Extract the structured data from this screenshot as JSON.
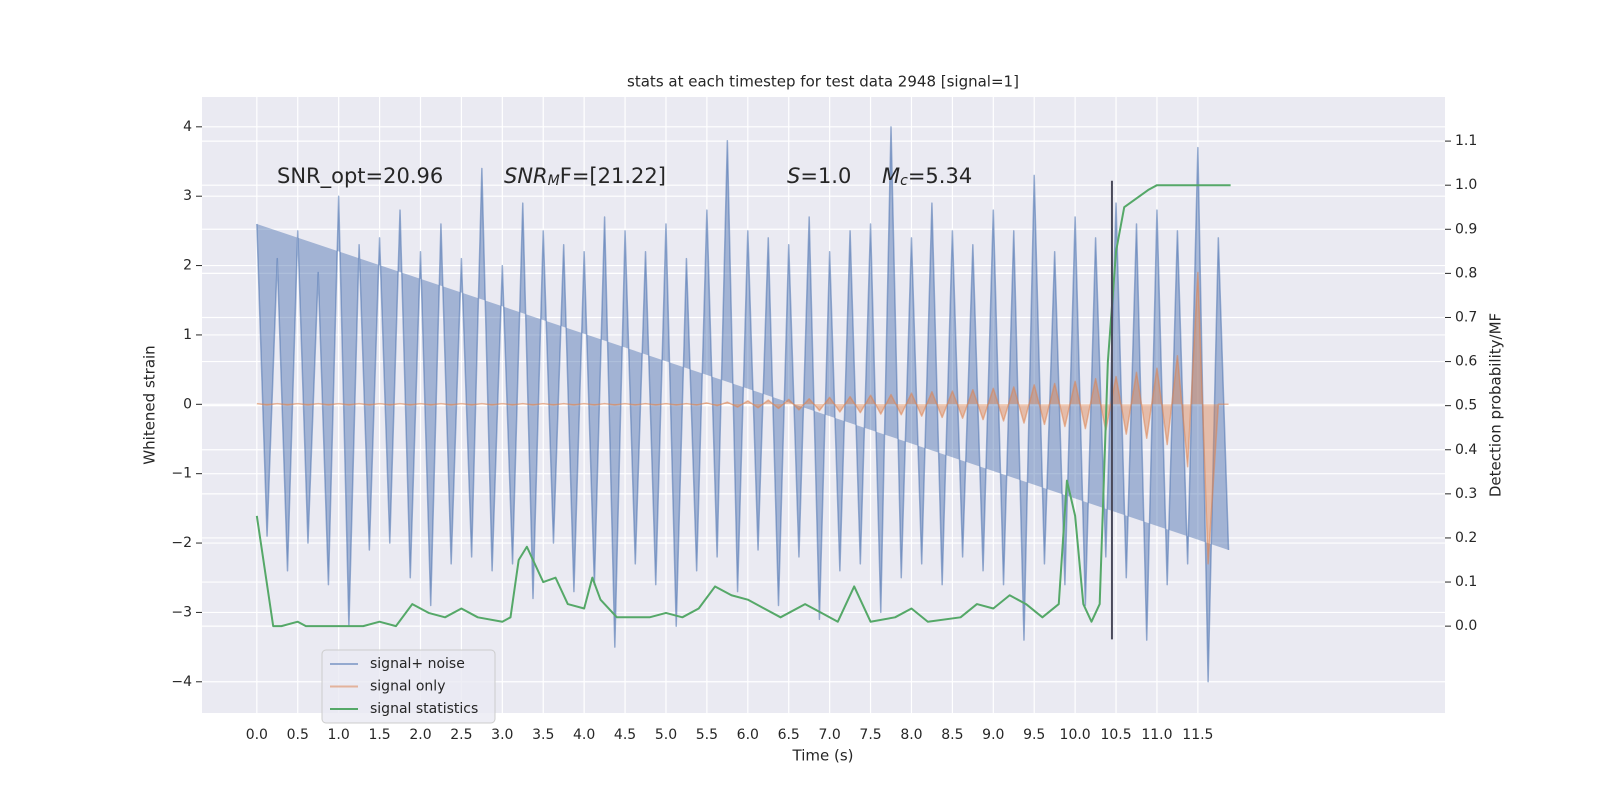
{
  "chart_data": {
    "type": "line",
    "title": "stats at each timestep for test data 2948 [signal=1]",
    "xlabel": "Time (s)",
    "ylabel": "Whitened strain",
    "y2label": "Detection probability/MF",
    "xlim": [
      -0.67,
      14.52
    ],
    "ylim": [
      -4.45,
      4.43
    ],
    "y2lim": [
      -0.197,
      1.2
    ],
    "xticks": [
      {
        "value": 0,
        "label": "0.0"
      },
      0.5,
      {
        "value": 1,
        "label": "1.0"
      },
      1.5,
      {
        "value": 2,
        "label": "2.0"
      },
      2.5,
      {
        "value": 3,
        "label": "3.0"
      },
      3.5,
      {
        "value": 4,
        "label": "4.0"
      },
      4.5,
      {
        "value": 5,
        "label": "5.0"
      },
      5.5,
      {
        "value": 6,
        "label": "6.0"
      },
      6.5,
      {
        "value": 7,
        "label": "7.0"
      },
      7.5,
      {
        "value": 8,
        "label": "8.0"
      },
      8.5,
      {
        "value": 9,
        "label": "9.0"
      },
      9.5,
      {
        "value": 10,
        "label": "10.0"
      },
      10.5,
      {
        "value": 11,
        "label": "11.0"
      },
      11.5
    ],
    "yticks": [
      {
        "value": -4,
        "label": "−4"
      },
      {
        "value": -3,
        "label": "−3"
      },
      {
        "value": -2,
        "label": "−2"
      },
      {
        "value": -1,
        "label": "−1"
      },
      0,
      1,
      2,
      3,
      4
    ],
    "y2ticks": [
      {
        "value": 0,
        "label": "0.0"
      },
      0.1,
      0.2,
      0.3,
      0.4,
      0.5,
      0.6,
      0.7,
      0.8,
      0.9,
      {
        "value": 1,
        "label": "1.0"
      },
      1.1
    ],
    "grid": true,
    "legend": "lower left",
    "x": [
      0,
      0.125,
      0.25,
      0.375,
      0.5,
      0.625,
      0.75,
      0.875,
      1,
      1.125,
      1.25,
      1.375,
      1.5,
      1.625,
      1.75,
      1.875,
      2,
      2.125,
      2.25,
      2.375,
      2.5,
      2.625,
      2.75,
      2.875,
      3,
      3.125,
      3.25,
      3.375,
      3.5,
      3.625,
      3.75,
      3.875,
      4,
      4.125,
      4.25,
      4.375,
      4.5,
      4.625,
      4.75,
      4.875,
      5,
      5.125,
      5.25,
      5.375,
      5.5,
      5.625,
      5.75,
      5.875,
      6,
      6.125,
      6.25,
      6.375,
      6.5,
      6.625,
      6.75,
      6.875,
      7,
      7.125,
      7.25,
      7.375,
      7.5,
      7.625,
      7.75,
      7.875,
      8,
      8.125,
      8.25,
      8.375,
      8.5,
      8.625,
      8.75,
      8.875,
      9,
      9.125,
      9.25,
      9.375,
      9.5,
      9.625,
      9.75,
      9.875,
      10,
      10.125,
      10.25,
      10.375,
      10.5,
      10.625,
      10.75,
      10.875,
      11,
      11.125,
      11.25,
      11.375,
      11.5,
      11.625,
      11.75,
      11.875
    ],
    "series": [
      {
        "name": "signal+ noise",
        "color": "#4c72b0",
        "values": [
          2.6,
          -1.9,
          2.1,
          -2.4,
          2.5,
          -2.0,
          1.9,
          -2.6,
          3.0,
          -3.2,
          2.3,
          -2.1,
          2.4,
          -2.0,
          2.8,
          -2.5,
          2.2,
          -2.9,
          2.6,
          -2.3,
          2.1,
          -2.2,
          3.4,
          -2.4,
          2.0,
          -2.3,
          2.9,
          -2.8,
          2.5,
          -2.0,
          2.3,
          -2.7,
          2.2,
          -2.6,
          2.7,
          -3.5,
          2.5,
          -2.3,
          2.2,
          -2.6,
          2.6,
          -3.2,
          2.1,
          -2.4,
          2.8,
          -2.2,
          3.8,
          -2.7,
          2.5,
          -2.1,
          2.4,
          -2.9,
          2.3,
          -2.2,
          2.7,
          -3.1,
          2.2,
          -2.4,
          2.5,
          -2.3,
          2.6,
          -3.0,
          4.0,
          -2.5,
          2.4,
          -2.3,
          2.9,
          -2.6,
          2.5,
          -2.2,
          2.3,
          -2.4,
          2.8,
          -2.6,
          2.5,
          -3.4,
          3.3,
          -2.3,
          2.2,
          -2.6,
          2.7,
          -2.9,
          2.4,
          -2.2,
          2.9,
          -2.5,
          2.6,
          -3.4,
          2.8,
          -2.6,
          2.5,
          -2.3,
          3.7,
          -4.0,
          2.4,
          -2.1
        ]
      },
      {
        "name": "signal only",
        "color": "#dd8452",
        "values": [
          0.01,
          -0.01,
          0.01,
          -0.01,
          0.01,
          -0.01,
          0.01,
          -0.01,
          0.01,
          -0.01,
          0.01,
          -0.01,
          0.01,
          -0.01,
          0.01,
          -0.01,
          0.01,
          -0.01,
          0.01,
          -0.01,
          0.01,
          -0.01,
          0.01,
          -0.01,
          0.01,
          -0.01,
          0.01,
          -0.01,
          0.01,
          -0.01,
          0.01,
          -0.01,
          0.01,
          -0.01,
          0.01,
          -0.01,
          0.01,
          -0.01,
          0.01,
          -0.01,
          0.01,
          -0.01,
          0.01,
          -0.01,
          0.02,
          -0.02,
          0.03,
          -0.04,
          0.05,
          -0.05,
          0.06,
          -0.06,
          0.07,
          -0.08,
          0.08,
          -0.09,
          0.1,
          -0.11,
          0.11,
          -0.12,
          0.13,
          -0.14,
          0.14,
          -0.15,
          0.16,
          -0.17,
          0.18,
          -0.19,
          0.19,
          -0.2,
          0.21,
          -0.22,
          0.23,
          -0.24,
          0.25,
          -0.27,
          0.28,
          -0.29,
          0.3,
          -0.32,
          0.33,
          -0.35,
          0.37,
          -0.38,
          0.4,
          -0.43,
          0.46,
          -0.49,
          0.52,
          -0.58,
          0.7,
          -0.9,
          1.9,
          -2.3,
          0,
          0
        ]
      },
      {
        "name": "signal statistics",
        "color": "#55a868",
        "axis": "y2",
        "x": [
          0,
          0.12,
          0.2,
          0.3,
          0.5,
          0.6,
          0.8,
          1.0,
          1.3,
          1.5,
          1.7,
          1.9,
          2.1,
          2.3,
          2.5,
          2.7,
          3.0,
          3.1,
          3.2,
          3.3,
          3.5,
          3.65,
          3.8,
          4.0,
          4.1,
          4.2,
          4.4,
          4.8,
          5.0,
          5.2,
          5.4,
          5.6,
          5.8,
          6.0,
          6.2,
          6.4,
          6.7,
          6.9,
          7.1,
          7.3,
          7.5,
          7.8,
          8.0,
          8.2,
          8.6,
          8.8,
          9.0,
          9.2,
          9.4,
          9.6,
          9.8,
          9.9,
          10.0,
          10.1,
          10.2,
          10.3,
          10.4,
          10.5,
          10.6,
          10.9,
          11.0,
          11.9
        ],
        "values": [
          0.25,
          0.1,
          0.0,
          0.0,
          0.01,
          0.0,
          0.0,
          0.0,
          0.0,
          0.01,
          0.0,
          0.05,
          0.03,
          0.02,
          0.04,
          0.02,
          0.01,
          0.02,
          0.15,
          0.18,
          0.1,
          0.11,
          0.05,
          0.04,
          0.11,
          0.06,
          0.02,
          0.02,
          0.03,
          0.02,
          0.04,
          0.09,
          0.07,
          0.06,
          0.04,
          0.02,
          0.05,
          0.03,
          0.01,
          0.09,
          0.01,
          0.02,
          0.04,
          0.01,
          0.02,
          0.05,
          0.04,
          0.07,
          0.05,
          0.02,
          0.05,
          0.33,
          0.25,
          0.05,
          0.01,
          0.05,
          0.6,
          0.85,
          0.95,
          0.99,
          1.0,
          1.0
        ]
      }
    ],
    "vline": {
      "x": 10.45,
      "y2_range": [
        -0.03,
        1.01
      ],
      "color": "#4a4a5a"
    },
    "annotations": [
      {
        "segments": [
          {
            "text": "SNR_opt=20.96"
          }
        ]
      },
      {
        "segments": [
          {
            "text": "SNR",
            "italic": true
          },
          {
            "text": "M",
            "italic": true,
            "sub": true
          },
          {
            "text": "F=[21.22]"
          }
        ]
      },
      {
        "segments": [
          {
            "text": "S",
            "italic": true
          },
          {
            "text": "=1.0"
          }
        ]
      },
      {
        "segments": [
          {
            "text": "M",
            "italic": true
          },
          {
            "text": "c",
            "italic": true,
            "sub": true
          },
          {
            "text": "=5.34"
          }
        ]
      }
    ]
  }
}
